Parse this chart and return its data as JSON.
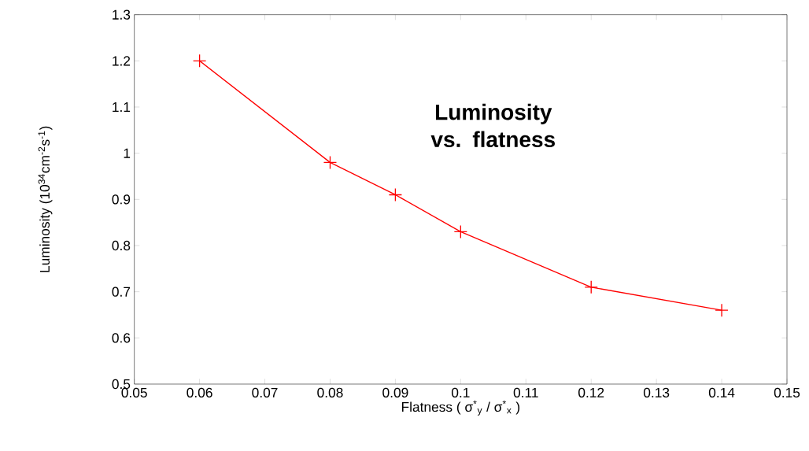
{
  "chart_data": {
    "type": "line",
    "title": "Luminosity vs. flatness",
    "xlabel": "Flatness ( σ$^{*}$$_{y}$ / σ$^{*}$$_{x}$ )",
    "ylabel": "Luminosity (10$^{34}$cm$^{-2}$s$^{-1}$)",
    "x": [
      0.06,
      0.08,
      0.09,
      0.1,
      0.12,
      0.14
    ],
    "series": [
      {
        "color": "#ff0000",
        "values": [
          1.2,
          0.98,
          0.91,
          0.83,
          0.71,
          0.66
        ]
      }
    ],
    "xlim": [
      0.05,
      0.15
    ],
    "ylim": [
      0.5,
      1.3
    ],
    "xticks": [
      0.05,
      0.06,
      0.07,
      0.08,
      0.09,
      0.1,
      0.11,
      0.12,
      0.13,
      0.14,
      0.15
    ],
    "yticks": [
      0.5,
      0.6,
      0.7,
      0.8,
      0.9,
      1,
      1.1,
      1.2,
      1.3
    ],
    "marker": "cross",
    "line_style": "solid",
    "grid": false
  }
}
